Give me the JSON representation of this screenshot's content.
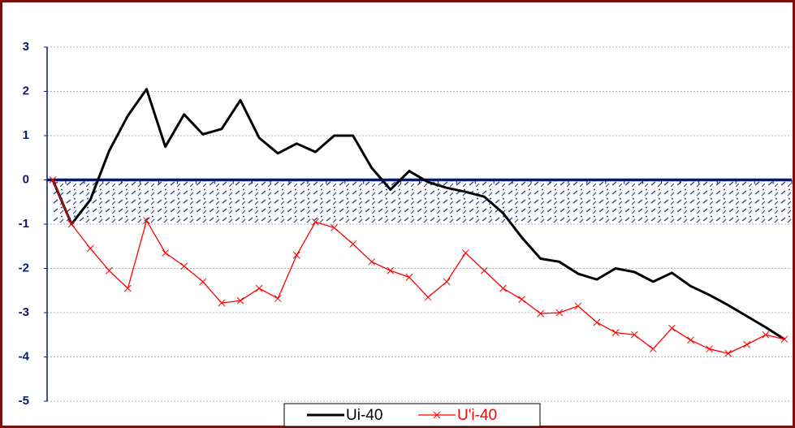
{
  "chart_data": {
    "type": "line",
    "categories": [
      null,
      null,
      null,
      null,
      null,
      null,
      null,
      null,
      null,
      null,
      null,
      null,
      null,
      null,
      null,
      null,
      null,
      null,
      null,
      null,
      null,
      null,
      null,
      null,
      null,
      null,
      null,
      null,
      null,
      null,
      null,
      null,
      null,
      null,
      null,
      null,
      null,
      null,
      null,
      null
    ],
    "series": [
      {
        "name": "Ui-40",
        "color": "#000000",
        "marker": "none",
        "values": [
          0,
          -1,
          -0.45,
          0.65,
          1.45,
          2.05,
          0.75,
          1.48,
          1.03,
          1.15,
          1.8,
          0.95,
          0.6,
          0.82,
          0.63,
          1.0,
          1.0,
          0.27,
          -0.22,
          0.2,
          -0.05,
          -0.18,
          -0.27,
          -0.38,
          -0.75,
          -1.3,
          -1.78,
          -1.85,
          -2.12,
          -2.25,
          -2.0,
          -2.08,
          -2.3,
          -2.1,
          -2.4,
          -2.6,
          -2.83,
          -3.08,
          -3.33,
          -3.6
        ]
      },
      {
        "name": "U'i-40",
        "color": "#ff0000",
        "marker": "x",
        "values": [
          0,
          -1.0,
          -1.55,
          -2.05,
          -2.45,
          -0.92,
          -1.65,
          -1.95,
          -2.3,
          -2.78,
          -2.73,
          -2.45,
          -2.68,
          -1.7,
          -0.95,
          -1.08,
          -1.45,
          -1.85,
          -2.05,
          -2.2,
          -2.65,
          -2.3,
          -1.65,
          -2.05,
          -2.45,
          -2.7,
          -3.02,
          -3.0,
          -2.85,
          -3.22,
          -3.45,
          -3.5,
          -3.82,
          -3.35,
          -3.62,
          -3.82,
          -3.92,
          -3.72,
          -3.5,
          -3.6
        ]
      }
    ],
    "ylim": [
      -5,
      3
    ],
    "yticks": [
      -5,
      -4,
      -3,
      -2,
      -1,
      0,
      1,
      2,
      3
    ],
    "grid": true,
    "band": {
      "from": -1,
      "to": 0
    },
    "legend": "bottom"
  }
}
